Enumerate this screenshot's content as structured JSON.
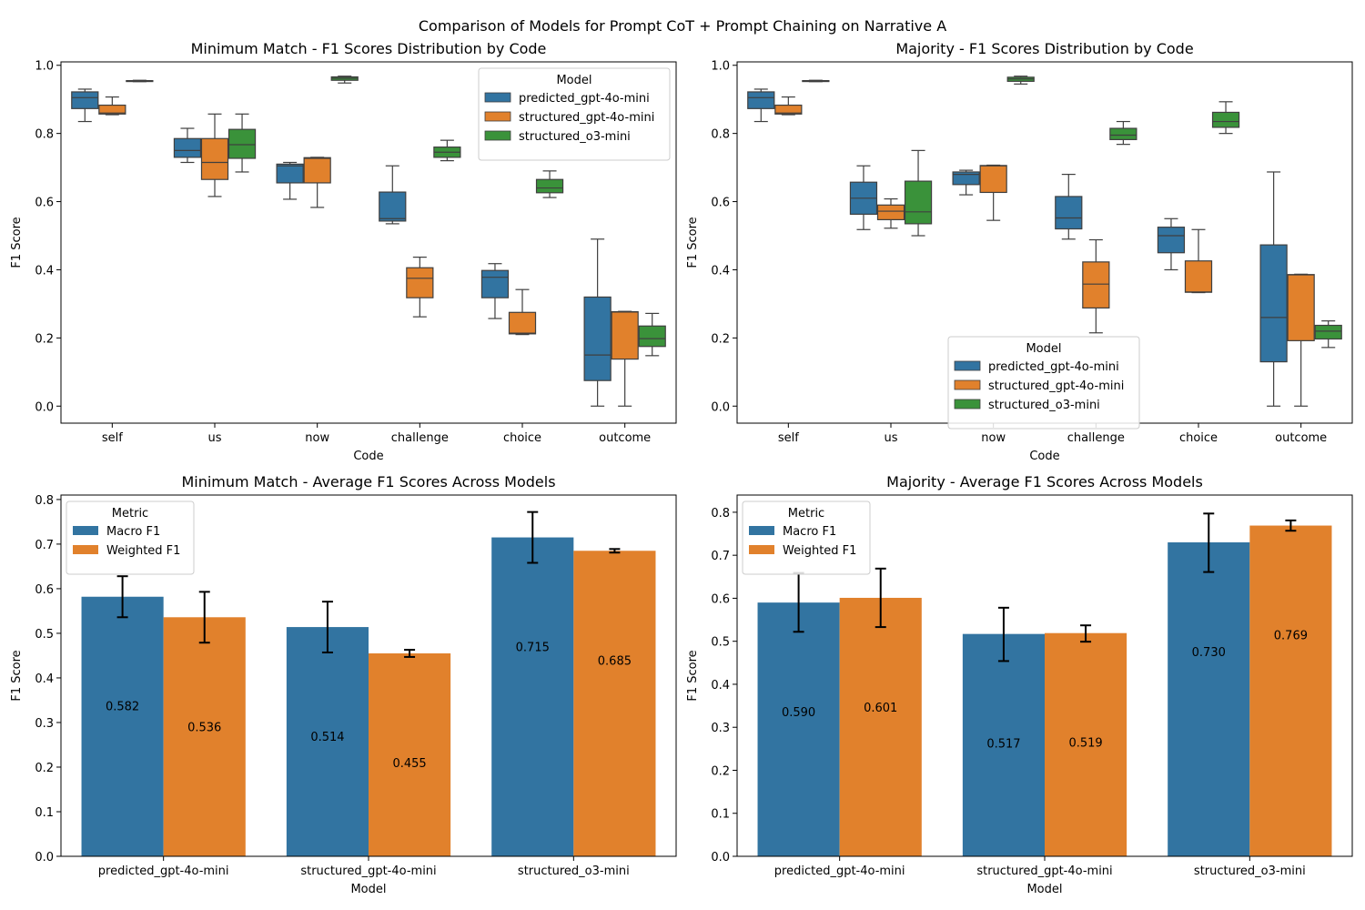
{
  "figure_title": "Comparison of Models for Prompt CoT + Prompt Chaining on Narrative A",
  "colors": {
    "predicted_gpt-4o-mini": "#3274a1",
    "structured_gpt-4o-mini": "#e1812c",
    "structured_o3-mini": "#3a923a",
    "Macro F1": "#3274a1",
    "Weighted F1": "#e1812c"
  },
  "chart_data": [
    {
      "type": "box",
      "title": "Minimum Match - F1 Scores Distribution by Code",
      "xlabel": "Code",
      "ylabel": "F1 Score",
      "ylim": [
        -0.05,
        1.01
      ],
      "yticks": [
        "0.0",
        "0.2",
        "0.4",
        "0.6",
        "0.8",
        "1.0"
      ],
      "categories": [
        "self",
        "us",
        "now",
        "challenge",
        "choice",
        "outcome"
      ],
      "legend": {
        "title": "Model",
        "placement": "top-right",
        "entries": [
          "predicted_gpt-4o-mini",
          "structured_gpt-4o-mini",
          "structured_o3-mini"
        ]
      },
      "series": [
        {
          "name": "predicted_gpt-4o-mini",
          "boxes": [
            {
              "category": "self",
              "min": 0.835,
              "q1": 0.873,
              "median": 0.905,
              "q3": 0.922,
              "max": 0.93
            },
            {
              "category": "us",
              "min": 0.715,
              "q1": 0.73,
              "median": 0.75,
              "q3": 0.785,
              "max": 0.815
            },
            {
              "category": "now",
              "min": 0.607,
              "q1": 0.655,
              "median": 0.705,
              "q3": 0.71,
              "max": 0.715
            },
            {
              "category": "challenge",
              "min": 0.535,
              "q1": 0.543,
              "median": 0.55,
              "q3": 0.628,
              "max": 0.705
            },
            {
              "category": "choice",
              "min": 0.257,
              "q1": 0.318,
              "median": 0.378,
              "q3": 0.398,
              "max": 0.418
            },
            {
              "category": "outcome",
              "min": 0.0,
              "q1": 0.075,
              "median": 0.15,
              "q3": 0.32,
              "max": 0.49
            }
          ]
        },
        {
          "name": "structured_gpt-4o-mini",
          "boxes": [
            {
              "category": "self",
              "min": 0.855,
              "q1": 0.857,
              "median": 0.86,
              "q3": 0.883,
              "max": 0.907
            },
            {
              "category": "us",
              "min": 0.615,
              "q1": 0.665,
              "median": 0.715,
              "q3": 0.785,
              "max": 0.857
            },
            {
              "category": "now",
              "min": 0.583,
              "q1": 0.655,
              "median": 0.727,
              "q3": 0.729,
              "max": 0.73
            },
            {
              "category": "challenge",
              "min": 0.262,
              "q1": 0.318,
              "median": 0.375,
              "q3": 0.406,
              "max": 0.437
            },
            {
              "category": "choice",
              "min": 0.21,
              "q1": 0.212,
              "median": 0.214,
              "q3": 0.275,
              "max": 0.342
            },
            {
              "category": "outcome",
              "min": 0.0,
              "q1": 0.138,
              "median": 0.276,
              "q3": 0.277,
              "max": 0.278
            }
          ]
        },
        {
          "name": "structured_o3-mini",
          "boxes": [
            {
              "category": "self",
              "min": 0.952,
              "q1": 0.953,
              "median": 0.954,
              "q3": 0.955,
              "max": 0.956
            },
            {
              "category": "us",
              "min": 0.687,
              "q1": 0.727,
              "median": 0.767,
              "q3": 0.812,
              "max": 0.857
            },
            {
              "category": "now",
              "min": 0.948,
              "q1": 0.956,
              "median": 0.962,
              "q3": 0.966,
              "max": 0.968
            },
            {
              "category": "challenge",
              "min": 0.72,
              "q1": 0.73,
              "median": 0.745,
              "q3": 0.76,
              "max": 0.78
            },
            {
              "category": "choice",
              "min": 0.612,
              "q1": 0.626,
              "median": 0.64,
              "q3": 0.665,
              "max": 0.69
            },
            {
              "category": "outcome",
              "min": 0.148,
              "q1": 0.175,
              "median": 0.198,
              "q3": 0.235,
              "max": 0.272
            }
          ]
        }
      ]
    },
    {
      "type": "box",
      "title": "Majority - F1 Scores Distribution by Code",
      "xlabel": "Code",
      "ylabel": "F1 Score",
      "ylim": [
        -0.05,
        1.01
      ],
      "yticks": [
        "0.0",
        "0.2",
        "0.4",
        "0.6",
        "0.8",
        "1.0"
      ],
      "categories": [
        "self",
        "us",
        "now",
        "challenge",
        "choice",
        "outcome"
      ],
      "legend": {
        "title": "Model",
        "placement": "lower-center",
        "entries": [
          "predicted_gpt-4o-mini",
          "structured_gpt-4o-mini",
          "structured_o3-mini"
        ]
      },
      "series": [
        {
          "name": "predicted_gpt-4o-mini",
          "boxes": [
            {
              "category": "self",
              "min": 0.835,
              "q1": 0.873,
              "median": 0.905,
              "q3": 0.922,
              "max": 0.93
            },
            {
              "category": "us",
              "min": 0.518,
              "q1": 0.563,
              "median": 0.61,
              "q3": 0.657,
              "max": 0.705
            },
            {
              "category": "now",
              "min": 0.62,
              "q1": 0.65,
              "median": 0.68,
              "q3": 0.687,
              "max": 0.692
            },
            {
              "category": "challenge",
              "min": 0.49,
              "q1": 0.52,
              "median": 0.552,
              "q3": 0.615,
              "max": 0.68
            },
            {
              "category": "choice",
              "min": 0.4,
              "q1": 0.45,
              "median": 0.5,
              "q3": 0.525,
              "max": 0.55
            },
            {
              "category": "outcome",
              "min": 0.0,
              "q1": 0.13,
              "median": 0.26,
              "q3": 0.473,
              "max": 0.687
            }
          ]
        },
        {
          "name": "structured_gpt-4o-mini",
          "boxes": [
            {
              "category": "self",
              "min": 0.855,
              "q1": 0.857,
              "median": 0.86,
              "q3": 0.883,
              "max": 0.907
            },
            {
              "category": "us",
              "min": 0.522,
              "q1": 0.547,
              "median": 0.572,
              "q3": 0.59,
              "max": 0.608
            },
            {
              "category": "now",
              "min": 0.545,
              "q1": 0.627,
              "median": 0.705,
              "q3": 0.706,
              "max": 0.707
            },
            {
              "category": "challenge",
              "min": 0.215,
              "q1": 0.288,
              "median": 0.358,
              "q3": 0.423,
              "max": 0.488
            },
            {
              "category": "choice",
              "min": 0.333,
              "q1": 0.334,
              "median": 0.335,
              "q3": 0.426,
              "max": 0.518
            },
            {
              "category": "outcome",
              "min": 0.0,
              "q1": 0.192,
              "median": 0.385,
              "q3": 0.386,
              "max": 0.387
            }
          ]
        },
        {
          "name": "structured_o3-mini",
          "boxes": [
            {
              "category": "self",
              "min": 0.952,
              "q1": 0.953,
              "median": 0.954,
              "q3": 0.955,
              "max": 0.956
            },
            {
              "category": "us",
              "min": 0.5,
              "q1": 0.535,
              "median": 0.57,
              "q3": 0.66,
              "max": 0.75
            },
            {
              "category": "now",
              "min": 0.945,
              "q1": 0.953,
              "median": 0.96,
              "q3": 0.965,
              "max": 0.968
            },
            {
              "category": "challenge",
              "min": 0.768,
              "q1": 0.782,
              "median": 0.795,
              "q3": 0.815,
              "max": 0.835
            },
            {
              "category": "choice",
              "min": 0.8,
              "q1": 0.818,
              "median": 0.835,
              "q3": 0.862,
              "max": 0.893
            },
            {
              "category": "outcome",
              "min": 0.172,
              "q1": 0.197,
              "median": 0.22,
              "q3": 0.237,
              "max": 0.25
            }
          ]
        }
      ]
    },
    {
      "type": "bar",
      "title": "Minimum Match - Average F1 Scores Across Models",
      "xlabel": "Model",
      "ylabel": "F1 Score",
      "ylim": [
        0,
        0.81
      ],
      "yticks": [
        "0.0",
        "0.1",
        "0.2",
        "0.3",
        "0.4",
        "0.5",
        "0.6",
        "0.7",
        "0.8"
      ],
      "categories": [
        "predicted_gpt-4o-mini",
        "structured_gpt-4o-mini",
        "structured_o3-mini"
      ],
      "legend": {
        "title": "Metric",
        "placement": "top-left",
        "entries": [
          "Macro F1",
          "Weighted F1"
        ]
      },
      "series": [
        {
          "name": "Macro F1",
          "values": [
            0.582,
            0.514,
            0.715
          ],
          "labels": [
            "0.582",
            "0.514",
            "0.715"
          ],
          "err_low": [
            0.536,
            0.457,
            0.658
          ],
          "err_high": [
            0.628,
            0.571,
            0.772
          ]
        },
        {
          "name": "Weighted F1",
          "values": [
            0.536,
            0.455,
            0.685
          ],
          "labels": [
            "0.536",
            "0.455",
            "0.685"
          ],
          "err_low": [
            0.479,
            0.447,
            0.681
          ],
          "err_high": [
            0.593,
            0.463,
            0.689
          ]
        }
      ]
    },
    {
      "type": "bar",
      "title": "Majority - Average F1 Scores Across Models",
      "xlabel": "Model",
      "ylabel": "F1 Score",
      "ylim": [
        0,
        0.84
      ],
      "yticks": [
        "0.0",
        "0.1",
        "0.2",
        "0.3",
        "0.4",
        "0.5",
        "0.6",
        "0.7",
        "0.8"
      ],
      "categories": [
        "predicted_gpt-4o-mini",
        "structured_gpt-4o-mini",
        "structured_o3-mini"
      ],
      "legend": {
        "title": "Metric",
        "placement": "top-left",
        "entries": [
          "Macro F1",
          "Weighted F1"
        ]
      },
      "series": [
        {
          "name": "Macro F1",
          "values": [
            0.59,
            0.517,
            0.73
          ],
          "labels": [
            "0.590",
            "0.517",
            "0.730"
          ],
          "err_low": [
            0.522,
            0.454,
            0.661
          ],
          "err_high": [
            0.659,
            0.578,
            0.797
          ]
        },
        {
          "name": "Weighted F1",
          "values": [
            0.601,
            0.519,
            0.769
          ],
          "labels": [
            "0.601",
            "0.519",
            "0.769"
          ],
          "err_low": [
            0.533,
            0.499,
            0.757
          ],
          "err_high": [
            0.669,
            0.537,
            0.781
          ]
        }
      ]
    }
  ]
}
